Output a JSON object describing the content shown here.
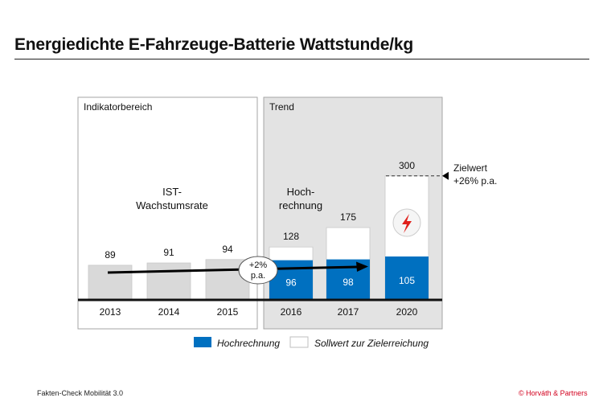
{
  "page": {
    "title": "Energiedichte E-Fahrzeuge-Batterie Wattstunde/kg",
    "footer_left": "Fakten-Check Mobilität 3.0",
    "footer_right": "© Horváth  & Partners"
  },
  "chart_data": {
    "type": "bar",
    "title": "Energiedichte E-Fahrzeuge-Batterie Wattstunde/kg",
    "categories": [
      "2013",
      "2014",
      "2015",
      "2016",
      "2017",
      "2020"
    ],
    "panels": [
      {
        "label": "Indikatorbereich",
        "categories": [
          "2013",
          "2014",
          "2015"
        ],
        "note_lines": [
          "IST-",
          "Wachstumsrate"
        ]
      },
      {
        "label": "Trend",
        "categories": [
          "2016",
          "2017",
          "2020"
        ],
        "note_lines": [
          "Hoch-",
          "rechnung"
        ]
      }
    ],
    "series": [
      {
        "name": "IST",
        "values": [
          89,
          91,
          94,
          null,
          null,
          null
        ],
        "color": "#d9d9d9"
      },
      {
        "name": "Hochrechnung",
        "values": [
          null,
          null,
          null,
          96,
          98,
          105
        ],
        "color": "#0070c0"
      },
      {
        "name": "Sollwert zur Zielerreichung",
        "values": [
          null,
          null,
          null,
          128,
          175,
          300
        ],
        "color": "#ffffff"
      }
    ],
    "growth_annotation": [
      "+2%",
      "p.a."
    ],
    "target": {
      "lines": [
        "Zielwert",
        "+26% p.a."
      ],
      "value": 300
    },
    "legend": [
      {
        "label": "Hochrechnung",
        "color": "#0070c0"
      },
      {
        "label": "Sollwert zur Zielerreichung",
        "color": "#ffffff"
      }
    ],
    "colors": {
      "panel_trend": "#e3e3e3",
      "ist_bar": "#d9d9d9",
      "hochrechnung": "#0070c0",
      "warning": "#e0201b"
    }
  }
}
